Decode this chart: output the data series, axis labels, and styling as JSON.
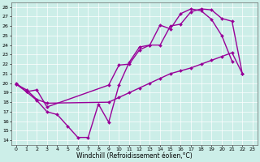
{
  "xlabel": "Windchill (Refroidissement éolien,°C)",
  "xlim": [
    -0.5,
    23.5
  ],
  "ylim": [
    13.5,
    28.5
  ],
  "xticks": [
    0,
    1,
    2,
    3,
    4,
    5,
    6,
    7,
    8,
    9,
    10,
    11,
    12,
    13,
    14,
    15,
    16,
    17,
    18,
    19,
    20,
    21,
    22,
    23
  ],
  "yticks": [
    14,
    15,
    16,
    17,
    18,
    19,
    20,
    21,
    22,
    23,
    24,
    25,
    26,
    27,
    28
  ],
  "bg_color": "#cceee8",
  "line_color": "#990099",
  "line_width": 1.0,
  "marker": "D",
  "marker_size": 2.0,
  "s1_x": [
    0,
    1,
    2,
    3,
    4,
    5,
    6,
    7,
    8,
    9,
    10,
    11,
    12,
    13,
    14,
    15,
    16,
    17,
    18,
    19,
    20,
    21
  ],
  "s1_y": [
    20.0,
    19.1,
    18.2,
    17.0,
    16.7,
    15.5,
    14.3,
    14.3,
    17.8,
    15.9,
    19.8,
    22.2,
    23.8,
    24.0,
    26.1,
    25.7,
    27.3,
    27.8,
    27.6,
    26.7,
    25.0,
    22.3
  ],
  "s2_x": [
    0,
    1,
    2,
    3,
    9,
    10,
    11,
    12,
    13,
    14,
    15,
    16,
    17,
    18,
    19,
    20,
    21,
    22
  ],
  "s2_y": [
    19.9,
    19.1,
    19.3,
    17.5,
    19.8,
    21.9,
    22.0,
    23.5,
    24.0,
    24.0,
    26.0,
    26.2,
    27.5,
    27.8,
    27.7,
    26.8,
    26.5,
    21.0
  ],
  "s3_x": [
    0,
    1,
    2,
    3,
    9,
    10,
    11,
    12,
    13,
    14,
    15,
    16,
    17,
    18,
    19,
    20,
    21,
    22
  ],
  "s3_y": [
    19.9,
    19.3,
    18.3,
    17.9,
    18.0,
    18.5,
    19.0,
    19.5,
    20.0,
    20.5,
    21.0,
    21.3,
    21.6,
    22.0,
    22.4,
    22.8,
    23.2,
    21.0
  ]
}
